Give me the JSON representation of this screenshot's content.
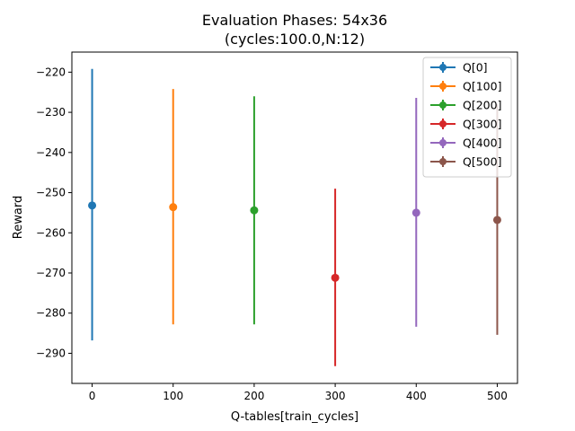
{
  "chart_data": {
    "type": "scatter",
    "title_line1": "Evaluation Phases: 54x36",
    "title_line2": "(cycles:100.0,N:12)",
    "xlabel": "Q-tables[train_cycles]",
    "ylabel": "Reward",
    "xlim": [
      -25,
      525
    ],
    "ylim": [
      -297.5,
      -215
    ],
    "xticks": [
      0,
      100,
      200,
      300,
      400,
      500
    ],
    "yticks": [
      -220,
      -230,
      -240,
      -250,
      -260,
      -270,
      -280,
      -290
    ],
    "grid": false,
    "legend_position": "top-right",
    "series": [
      {
        "name": "Q[0]",
        "x": 0,
        "y": -253.2,
        "ymin": -286.8,
        "ymax": -219.2,
        "color": "#1f77b4"
      },
      {
        "name": "Q[100]",
        "x": 100,
        "y": -253.6,
        "ymin": -282.8,
        "ymax": -224.2,
        "color": "#ff7f0e"
      },
      {
        "name": "Q[200]",
        "x": 200,
        "y": -254.4,
        "ymin": -282.8,
        "ymax": -226.0,
        "color": "#2ca02c"
      },
      {
        "name": "Q[300]",
        "x": 300,
        "y": -271.2,
        "ymin": -293.2,
        "ymax": -249.0,
        "color": "#d62728"
      },
      {
        "name": "Q[400]",
        "x": 400,
        "y": -255.0,
        "ymin": -283.4,
        "ymax": -226.4,
        "color": "#9467bd"
      },
      {
        "name": "Q[500]",
        "x": 500,
        "y": -256.8,
        "ymin": -285.4,
        "ymax": -228.0,
        "color": "#8c564b"
      }
    ]
  }
}
